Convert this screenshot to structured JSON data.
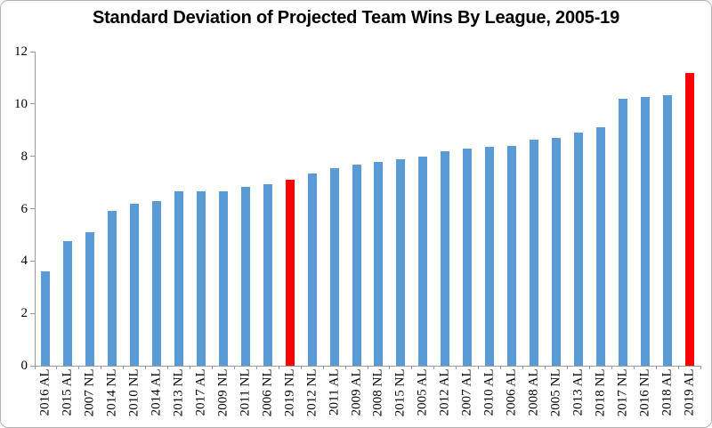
{
  "chart_data": {
    "type": "bar",
    "title": "Standard Deviation of Projected Team Wins By League, 2005-19",
    "xlabel": "",
    "ylabel": "",
    "categories": [
      "2016 AL",
      "2015 AL",
      "2007 NL",
      "2014 NL",
      "2010 NL",
      "2014 AL",
      "2013 NL",
      "2017 AL",
      "2009 NL",
      "2011 NL",
      "2006 NL",
      "2019 NL",
      "2012 NL",
      "2011 AL",
      "2009 AL",
      "2008 NL",
      "2015 NL",
      "2005 AL",
      "2012 AL",
      "2007 AL",
      "2010 AL",
      "2006 AL",
      "2008 AL",
      "2005 NL",
      "2013 AL",
      "2018 NL",
      "2017 NL",
      "2016 NL",
      "2018 AL",
      "2019 AL"
    ],
    "values": [
      3.6,
      4.75,
      5.1,
      5.9,
      6.2,
      6.3,
      6.65,
      6.65,
      6.65,
      6.85,
      6.95,
      7.1,
      7.35,
      7.55,
      7.7,
      7.8,
      7.9,
      8.0,
      8.2,
      8.3,
      8.35,
      8.4,
      8.65,
      8.7,
      8.9,
      9.1,
      10.2,
      10.25,
      10.35,
      11.2
    ],
    "highlighted_categories": [
      "2019 NL",
      "2019 AL"
    ],
    "ylim": [
      0,
      12
    ],
    "yticks": [
      0,
      2,
      4,
      6,
      8,
      10,
      12
    ],
    "grid": false,
    "legend": "none",
    "bar_color": "#5b9bd5",
    "highlight_color": "#ff0000",
    "axis_color": "#9a9a9a",
    "text_color": "#000000"
  }
}
